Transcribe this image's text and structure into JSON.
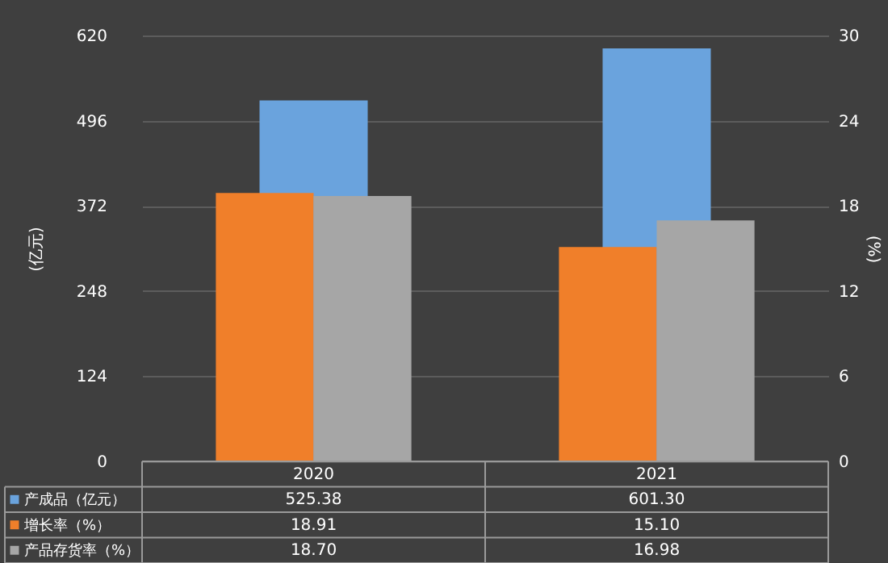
{
  "chart_data": {
    "type": "bar",
    "categories": [
      "2020",
      "2021"
    ],
    "ylabel": "(亿元)",
    "y2label": "(%)",
    "ylim": [
      0,
      620
    ],
    "yticks": [
      0,
      124,
      248,
      372,
      496,
      620
    ],
    "y2lim": [
      0,
      30
    ],
    "y2ticks": [
      0,
      6,
      12,
      18,
      24,
      30
    ],
    "grid": "y",
    "legend": "bottom",
    "series": [
      {
        "name": "产成品（亿元）",
        "color": "#6aa3dd",
        "values": [
          525.38,
          601.3
        ],
        "value_labels": [
          "525.38",
          "601.30"
        ]
      },
      {
        "name": "增长率（%）",
        "color": "#f07f2a",
        "axis": "y2",
        "values": [
          18.91,
          15.1
        ],
        "value_labels": [
          "18.91",
          "15.10"
        ]
      },
      {
        "name": "产品存货率（%）",
        "color": "#a6a6a6",
        "axis": "y2",
        "values": [
          18.7,
          16.98
        ],
        "value_labels": [
          "18.70",
          "16.98"
        ]
      }
    ]
  }
}
